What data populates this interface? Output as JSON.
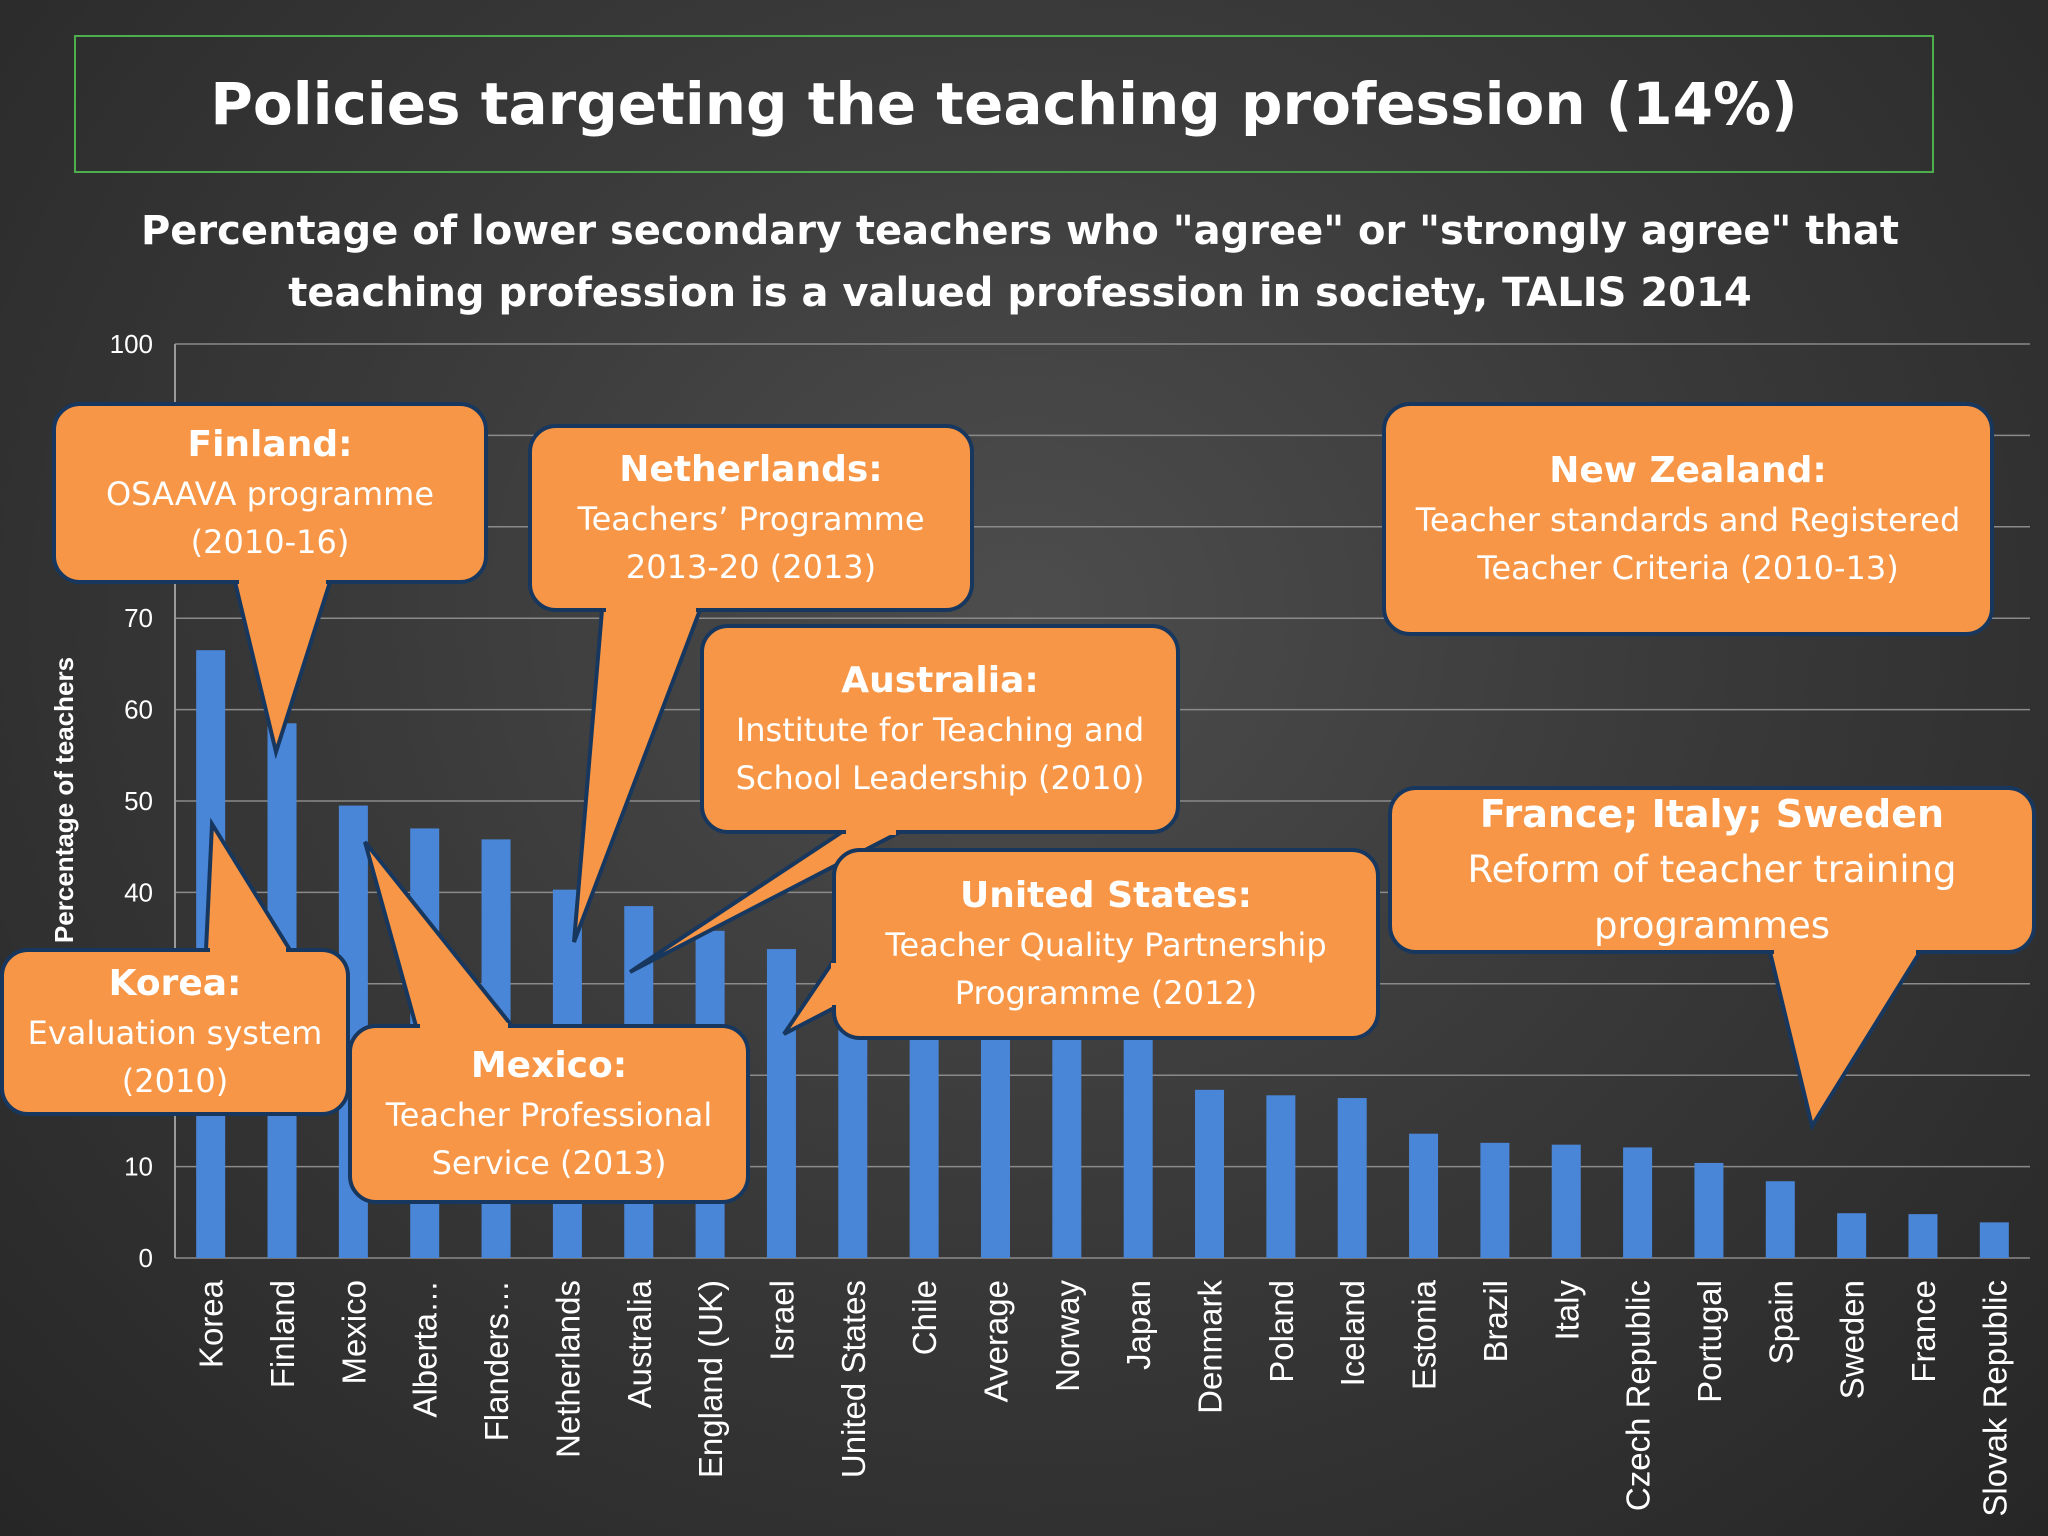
{
  "title": "Policies targeting the teaching profession (14%)",
  "subtitle_lines": [
    "Percentage of lower secondary teachers who \"agree\" or \"strongly agree\" that",
    "teaching profession is a valued profession in society, TALIS 2014"
  ],
  "colors": {
    "bar": "#4a86d8",
    "callout_fill": "#f79646",
    "callout_border": "#17375e",
    "title_border": "#4cae4c"
  },
  "chart_data": {
    "type": "bar",
    "title": "",
    "xlabel": "",
    "ylabel": "Percentage of teachers",
    "ylim": [
      0,
      100
    ],
    "yticks": [
      0,
      10,
      20,
      30,
      40,
      50,
      60,
      70,
      80,
      90,
      100
    ],
    "ytick_labels_visible": [
      "0",
      "10",
      "40",
      "50",
      "60",
      "70",
      "100"
    ],
    "grid": true,
    "categories": [
      "Korea",
      "Finland",
      "Mexico",
      "Alberta…",
      "Flanders…",
      "Netherlands",
      "Australia",
      "England (UK)",
      "Israel",
      "United States",
      "Chile",
      "Average",
      "Norway",
      "Japan",
      "Denmark",
      "Poland",
      "Iceland",
      "Estonia",
      "Brazil",
      "Italy",
      "Czech Republic",
      "Portugal",
      "Spain",
      "Sweden",
      "France",
      "Slovak Republic"
    ],
    "values": [
      66.5,
      58.5,
      49.5,
      47,
      45.8,
      40.3,
      38.5,
      35.8,
      33.8,
      28,
      26,
      25,
      24.5,
      24,
      18.4,
      17.8,
      17.5,
      13.6,
      12.6,
      12.4,
      12.1,
      10.4,
      8.4,
      4.9,
      4.8,
      3.9
    ]
  },
  "callouts": [
    {
      "id": "finland",
      "title": "Finland:",
      "lines": [
        "OSAAVA programme",
        "(2010-16)"
      ]
    },
    {
      "id": "netherlands",
      "title": "Netherlands:",
      "lines": [
        "Teachers’ Programme",
        "2013-20 (2013)"
      ]
    },
    {
      "id": "new-zealand",
      "title": "New Zealand:",
      "lines": [
        "Teacher standards and Registered",
        "Teacher Criteria (2010-13)"
      ]
    },
    {
      "id": "australia",
      "title": "Australia:",
      "lines": [
        "Institute for Teaching and",
        "School Leadership (2010)"
      ]
    },
    {
      "id": "france-italy-sweden",
      "title": "France; Italy; Sweden",
      "lines": [
        "Reform of teacher training",
        "programmes"
      ]
    },
    {
      "id": "united-states",
      "title": "United States:",
      "lines": [
        "Teacher Quality Partnership",
        "Programme (2012)"
      ]
    },
    {
      "id": "korea",
      "title": "Korea:",
      "lines": [
        "Evaluation system",
        "(2010)"
      ]
    },
    {
      "id": "mexico",
      "title": "Mexico:",
      "lines": [
        "Teacher Professional",
        "Service  (2013)"
      ]
    }
  ]
}
